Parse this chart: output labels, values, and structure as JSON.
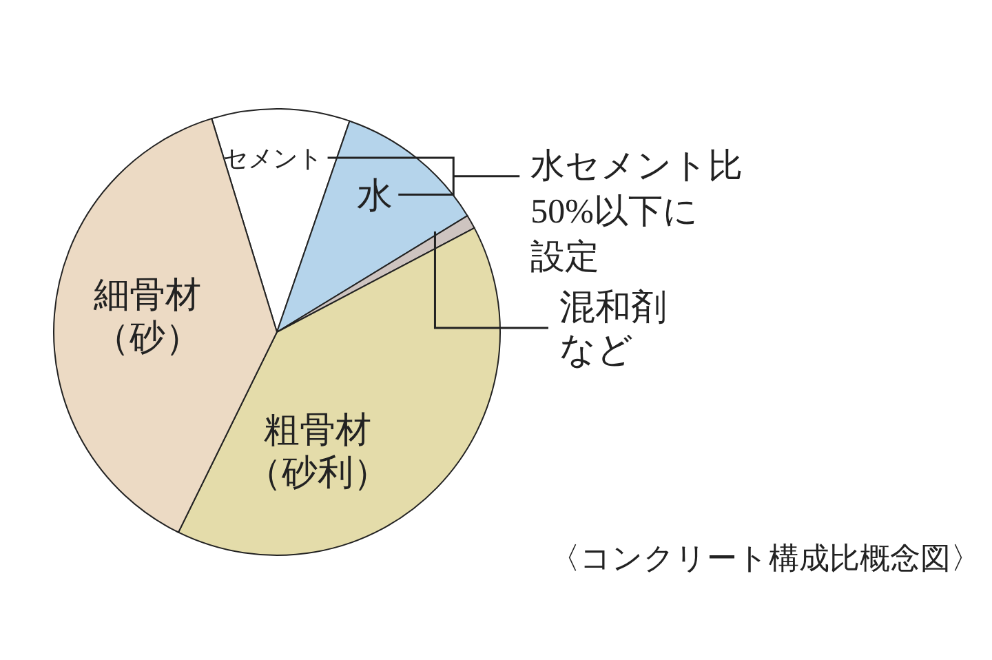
{
  "chart_data": {
    "type": "pie",
    "categories": [
      "セメント",
      "水",
      "混和剤など",
      "粗骨材（砂利）",
      "細骨材（砂）"
    ],
    "values": [
      10,
      11,
      1,
      40,
      38
    ],
    "colors": [
      "#ffffff",
      "#b5d4eb",
      "#cec4c0",
      "#e4dcaa",
      "#ecdac4"
    ],
    "annotations": [
      "水セメント比50%以下に設定",
      "〈コンクリート構成比概念図〉"
    ]
  }
}
